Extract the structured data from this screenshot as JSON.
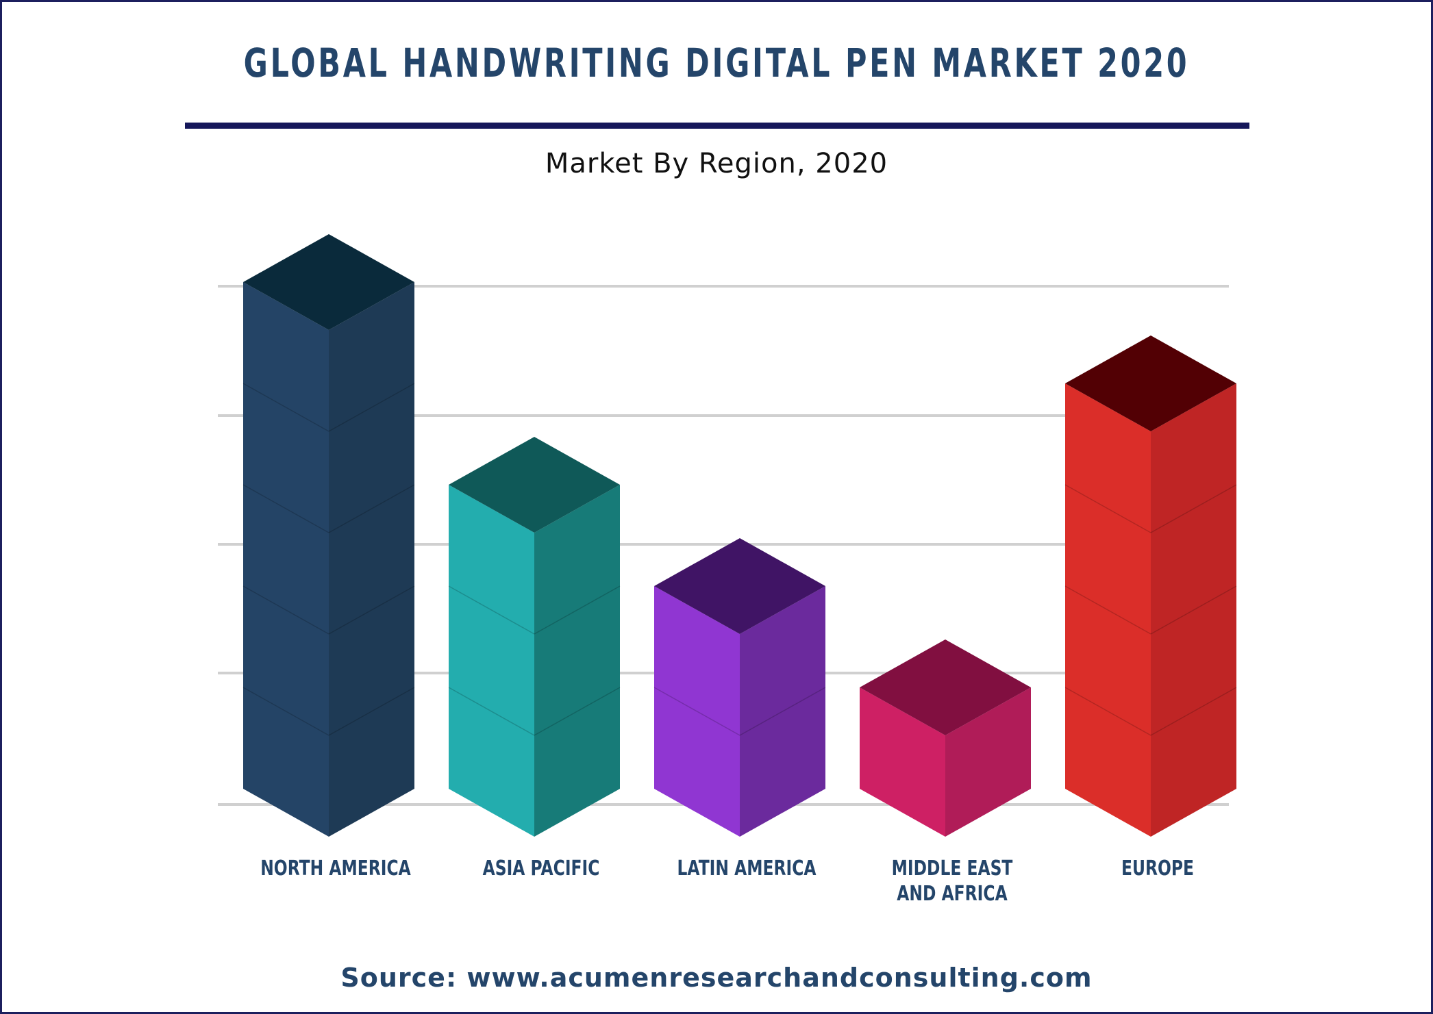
{
  "title": "GLOBAL HANDWRITING DIGITAL PEN MARKET 2020",
  "subtitle": "Market By Region, 2020",
  "source": "Source: www.acumenresearchandconsulting.com",
  "chart_data": {
    "type": "bar",
    "style": "3d-isometric-stacked-cubes",
    "title": "GLOBAL HANDWRITING DIGITAL PEN MARKET 2020",
    "subtitle": "Market By Region, 2020",
    "xlabel": "",
    "ylabel": "",
    "grid": true,
    "legend": "none",
    "axis_values_shown": false,
    "categories": [
      "NORTH AMERICA",
      "ASIA PACIFIC",
      "LATIN AMERICA",
      "MIDDLE EAST AND AFRICA",
      "EUROPE"
    ],
    "category_label_lines": [
      [
        "NORTH AMERICA"
      ],
      [
        "ASIA PACIFIC"
      ],
      [
        "LATIN AMERICA"
      ],
      [
        "MIDDLE EAST",
        "AND AFRICA"
      ],
      [
        "EUROPE"
      ]
    ],
    "values": [
      5,
      3,
      2,
      1,
      4
    ],
    "value_unit": "stacked blocks (relative, unlabeled)",
    "colors": {
      "front": [
        "#244466",
        "#23adae",
        "#9036d2",
        "#ce2064",
        "#db2e29"
      ],
      "side": [
        "#1e3a55",
        "#177b78",
        "#6b2a9d",
        "#b01c58",
        "#bf2525"
      ],
      "top": [
        "#0a2a3b",
        "#0f5958",
        "#401465",
        "#810f40",
        "#520004"
      ],
      "grid": "#d0d0d0",
      "title": "#24456a",
      "rule": "#15175a",
      "frame": "#1c1f5e"
    }
  }
}
